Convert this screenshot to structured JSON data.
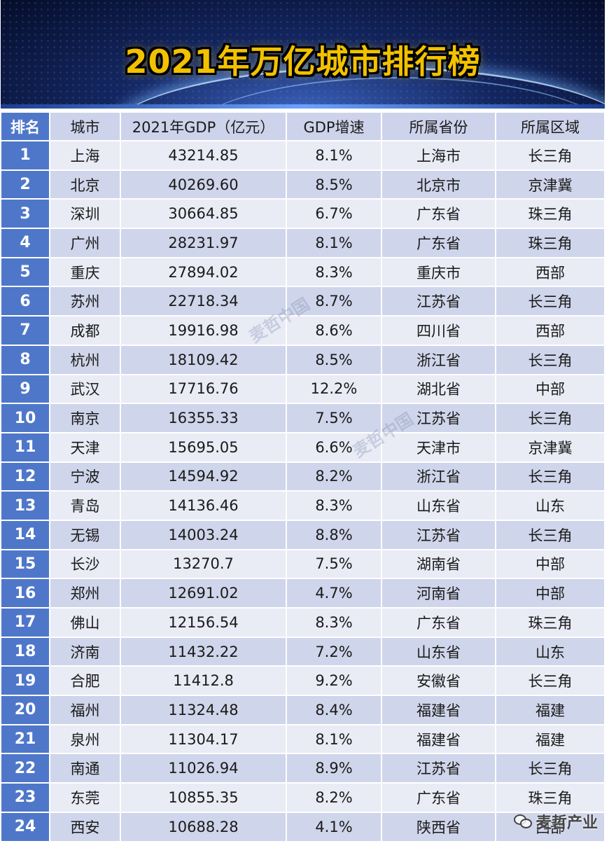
{
  "title": "2021年万亿城市排行榜",
  "headers": [
    "排名",
    "城市",
    "2021年GDP（亿元）",
    "GDP增速",
    "所属省份",
    "所属区域"
  ],
  "rows": [
    [
      "1",
      "上海",
      "43214.85",
      "8.1%",
      "上海市",
      "长三角"
    ],
    [
      "2",
      "北京",
      "40269.60",
      "8.5%",
      "北京市",
      "京津冀"
    ],
    [
      "3",
      "深圳",
      "30664.85",
      "6.7%",
      "广东省",
      "珠三角"
    ],
    [
      "4",
      "广州",
      "28231.97",
      "8.1%",
      "广东省",
      "珠三角"
    ],
    [
      "5",
      "重庆",
      "27894.02",
      "8.3%",
      "重庆市",
      "西部"
    ],
    [
      "6",
      "苏州",
      "22718.34",
      "8.7%",
      "江苏省",
      "长三角"
    ],
    [
      "7",
      "成都",
      "19916.98",
      "8.6%",
      "四川省",
      "西部"
    ],
    [
      "8",
      "杭州",
      "18109.42",
      "8.5%",
      "浙江省",
      "长三角"
    ],
    [
      "9",
      "武汉",
      "17716.76",
      "12.2%",
      "湖北省",
      "中部"
    ],
    [
      "10",
      "南京",
      "16355.33",
      "7.5%",
      "江苏省",
      "长三角"
    ],
    [
      "11",
      "天津",
      "15695.05",
      "6.6%",
      "天津市",
      "京津冀"
    ],
    [
      "12",
      "宁波",
      "14594.92",
      "8.2%",
      "浙江省",
      "长三角"
    ],
    [
      "13",
      "青岛",
      "14136.46",
      "8.3%",
      "山东省",
      "山东"
    ],
    [
      "14",
      "无锡",
      "14003.24",
      "8.8%",
      "江苏省",
      "长三角"
    ],
    [
      "15",
      "长沙",
      "13270.7",
      "7.5%",
      "湖南省",
      "中部"
    ],
    [
      "16",
      "郑州",
      "12691.02",
      "4.7%",
      "河南省",
      "中部"
    ],
    [
      "17",
      "佛山",
      "12156.54",
      "8.3%",
      "广东省",
      "珠三角"
    ],
    [
      "18",
      "济南",
      "11432.22",
      "7.2%",
      "山东省",
      "山东"
    ],
    [
      "19",
      "合肥",
      "11412.8",
      "9.2%",
      "安徽省",
      "长三角"
    ],
    [
      "20",
      "福州",
      "11324.48",
      "8.4%",
      "福建省",
      "福建"
    ],
    [
      "21",
      "泉州",
      "11304.17",
      "8.1%",
      "福建省",
      "福建"
    ],
    [
      "22",
      "南通",
      "11026.94",
      "8.9%",
      "江苏省",
      "长三角"
    ],
    [
      "23",
      "东莞",
      "10855.35",
      "8.2%",
      "广东省",
      "珠三角"
    ],
    [
      "24",
      "西安",
      "10688.28",
      "4.1%",
      "陕西省",
      "西部"
    ]
  ],
  "watermarks": [
    "麦哲中国",
    "麦哲中国"
  ],
  "footer_mark": "麦哲产业",
  "icons": {
    "footer": "wechat-icon"
  },
  "colors": {
    "rank_bg": "#4f77c9",
    "title": "#f2c200",
    "row_light": "#e9ebf5",
    "row_dark": "#cfd5ea"
  }
}
